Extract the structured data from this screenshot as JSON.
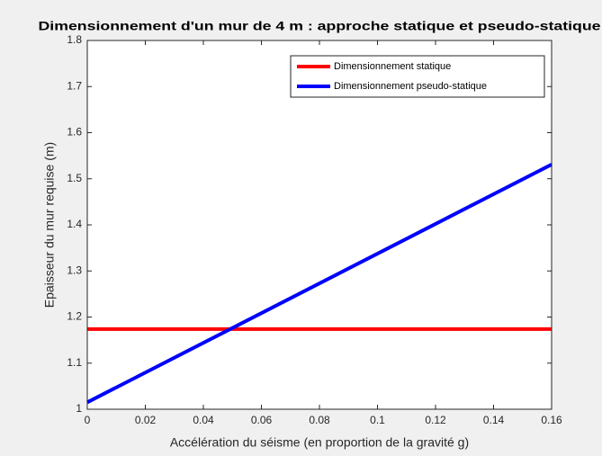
{
  "chart_data": {
    "type": "line",
    "title": "Dimensionnement d'un mur de 4 m : approche statique et pseudo-statique",
    "xlabel": "Accélération du séisme (en proportion de la gravité g)",
    "ylabel": "Epaisseur du mur requise (m)",
    "xlim": [
      0,
      0.16
    ],
    "xticks": [
      0,
      0.02,
      0.04,
      0.06,
      0.08,
      0.1,
      0.12,
      0.14,
      0.16
    ],
    "ylim": [
      1,
      1.8
    ],
    "yticks": [
      1,
      1.1,
      1.2,
      1.3,
      1.4,
      1.5,
      1.6,
      1.7,
      1.8
    ],
    "legend": "northeast",
    "series": [
      {
        "name": "Dimensionnement statique",
        "color": "#ff0000",
        "x": [
          0,
          0.16
        ],
        "values": [
          1.174,
          1.174
        ]
      },
      {
        "name": "Dimensionnement pseudo-statique",
        "color": "#0000ff",
        "x": [
          0,
          0.16
        ],
        "values": [
          1.015,
          1.531
        ]
      }
    ]
  }
}
